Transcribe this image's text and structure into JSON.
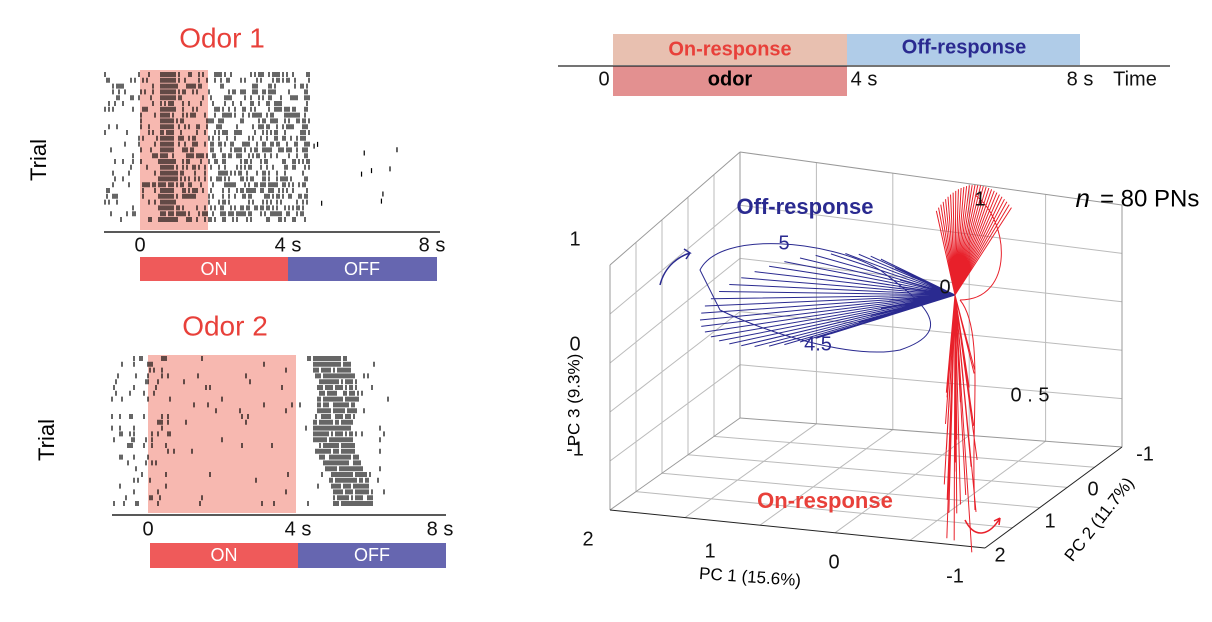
{
  "raster_1": {
    "title": "Odor 1",
    "y_label": "Trial",
    "x_ticks": [
      "0",
      "4 s",
      "8 s"
    ],
    "bar": [
      "ON",
      "OFF"
    ]
  },
  "raster_2": {
    "title": "Odor 2",
    "y_label": "Trial",
    "x_ticks": [
      "0",
      "4 s",
      "8 s"
    ],
    "bar": [
      "ON",
      "OFF"
    ]
  },
  "timeline": {
    "on_label": "On-response",
    "off_label": "Off-response",
    "odor": "odor",
    "ticks": [
      "0",
      "4 s",
      "8 s"
    ],
    "axis_label": "Time"
  },
  "pca": {
    "n_symbol": "n",
    "n_text": "= 80 PNs",
    "off_label": "Off-response",
    "on_label": "On-response",
    "x_label": "PC 1 (15.6%)",
    "y_label": "PC 2 (11.7%)",
    "z_label": "PC 3 (9.3%)",
    "x_ticks": [
      "2",
      "1",
      "0",
      "-1"
    ],
    "y_ticks": [
      "-1",
      "0",
      "1",
      "2"
    ],
    "z_ticks": [
      "1",
      "0",
      "-1"
    ],
    "blue_times": [
      "5",
      "4.5"
    ],
    "red_times": [
      "0",
      "1",
      "0 . 5"
    ]
  }
}
